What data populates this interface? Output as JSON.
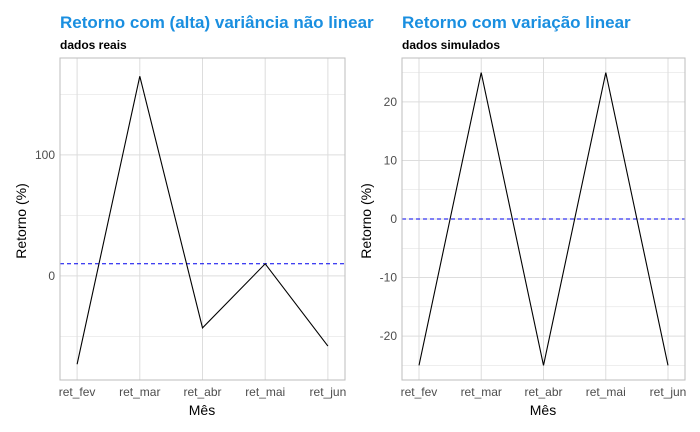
{
  "colors": {
    "title": "#1a8fe0",
    "line": "#000000",
    "reference": "#0000ee",
    "grid": "#dddddd",
    "panel_border": "#bdbdbd"
  },
  "chart_data": [
    {
      "type": "line",
      "title": "Retorno com (alta) variância não linear",
      "subtitle": "dados reais",
      "xlabel": "Mês",
      "ylabel": "Retorno (%)",
      "categories": [
        "ret_fev",
        "ret_mar",
        "ret_abr",
        "ret_mai",
        "ret_jun"
      ],
      "series": [
        {
          "values": [
            -73,
            165,
            -43,
            10,
            -58
          ]
        }
      ],
      "reference_line": {
        "y": 10,
        "style": "dashed"
      },
      "yticks": [
        0,
        100
      ],
      "ylim": [
        -86,
        180
      ],
      "grid": true
    },
    {
      "type": "line",
      "title": "Retorno com variação linear",
      "subtitle": "dados simulados",
      "xlabel": "Mês",
      "ylabel": "Retorno (%)",
      "categories": [
        "ret_fev",
        "ret_mar",
        "ret_abr",
        "ret_mai",
        "ret_jun"
      ],
      "series": [
        {
          "values": [
            -25,
            25,
            -25,
            25,
            -25
          ]
        }
      ],
      "reference_line": {
        "y": 0,
        "style": "dashed"
      },
      "yticks": [
        -20,
        -10,
        0,
        10,
        20
      ],
      "ylim": [
        -27.5,
        27.5
      ],
      "grid": true
    }
  ]
}
